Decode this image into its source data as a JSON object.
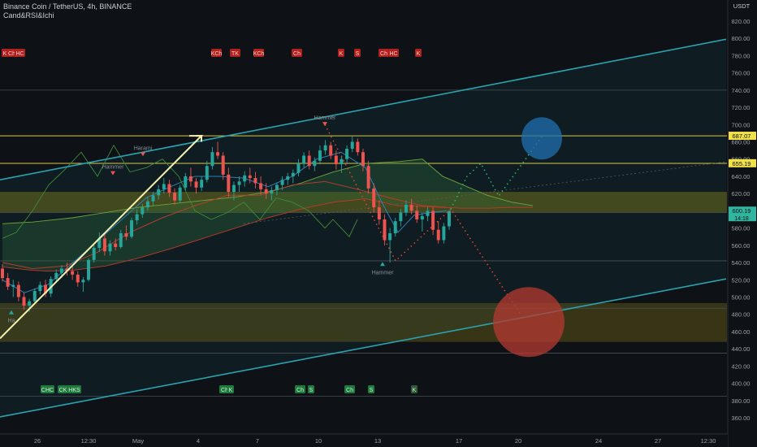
{
  "header": {
    "title": "Binance Coin / TetherUS, 4h, BINANCE",
    "indicator": "Cand&RSI&Ichi",
    "currency": "USDT"
  },
  "chart_data": {
    "type": "candlestick",
    "title": "Binance Coin / TetherUS, 4h, BINANCE",
    "ylim": [
      350,
      835
    ],
    "y_ticks": [
      360,
      380,
      400,
      420,
      440,
      460,
      480,
      500,
      520,
      540,
      560,
      580,
      600,
      620,
      640,
      660,
      680,
      700,
      720,
      740,
      760,
      780,
      800,
      820
    ],
    "x_ticks": [
      "26",
      "12:30",
      "May",
      "4",
      "7",
      "10",
      "13",
      "17",
      "20",
      "24",
      "27",
      "12:30"
    ],
    "price_labels": [
      {
        "value": 687.07,
        "label": "687.07",
        "color": "#f0e14a"
      },
      {
        "value": 655.19,
        "label": "655.19",
        "color": "#f0e14a"
      },
      {
        "value": 600.19,
        "label": "600.19",
        "color": "#2fb5a0"
      }
    ],
    "countdown": "14:18",
    "candles": [
      [
        533,
        538,
        518,
        522
      ],
      [
        522,
        528,
        508,
        512
      ],
      [
        512,
        520,
        500,
        514
      ],
      [
        514,
        518,
        495,
        500
      ],
      [
        500,
        505,
        485,
        490
      ],
      [
        490,
        498,
        483,
        495
      ],
      [
        495,
        510,
        492,
        507
      ],
      [
        507,
        518,
        503,
        514
      ],
      [
        514,
        520,
        500,
        504
      ],
      [
        504,
        524,
        500,
        521
      ],
      [
        521,
        532,
        517,
        528
      ],
      [
        528,
        537,
        522,
        533
      ],
      [
        533,
        540,
        525,
        530
      ],
      [
        530,
        536,
        520,
        526
      ],
      [
        526,
        530,
        512,
        517
      ],
      [
        517,
        523,
        506,
        520
      ],
      [
        520,
        545,
        518,
        543
      ],
      [
        543,
        560,
        540,
        557
      ],
      [
        557,
        575,
        552,
        568
      ],
      [
        568,
        573,
        548,
        553
      ],
      [
        553,
        566,
        548,
        562
      ],
      [
        562,
        568,
        554,
        558
      ],
      [
        558,
        578,
        556,
        574
      ],
      [
        574,
        583,
        566,
        570
      ],
      [
        570,
        592,
        568,
        589
      ],
      [
        589,
        602,
        584,
        596
      ],
      [
        596,
        608,
        592,
        604
      ],
      [
        604,
        616,
        600,
        611
      ],
      [
        611,
        622,
        606,
        618
      ],
      [
        618,
        630,
        613,
        625
      ],
      [
        625,
        638,
        620,
        631
      ],
      [
        631,
        636,
        616,
        621
      ],
      [
        621,
        626,
        607,
        612
      ],
      [
        612,
        630,
        609,
        627
      ],
      [
        627,
        644,
        624,
        640
      ],
      [
        640,
        650,
        628,
        634
      ],
      [
        634,
        638,
        620,
        627
      ],
      [
        627,
        640,
        623,
        636
      ],
      [
        636,
        658,
        633,
        652
      ],
      [
        652,
        674,
        648,
        668
      ],
      [
        668,
        680,
        660,
        664
      ],
      [
        664,
        668,
        636,
        642
      ],
      [
        642,
        650,
        616,
        622
      ],
      [
        622,
        634,
        612,
        630
      ],
      [
        630,
        640,
        622,
        634
      ],
      [
        634,
        646,
        628,
        641
      ],
      [
        641,
        650,
        632,
        638
      ],
      [
        638,
        645,
        626,
        632
      ],
      [
        632,
        640,
        618,
        625
      ],
      [
        625,
        632,
        614,
        620
      ],
      [
        620,
        628,
        612,
        624
      ],
      [
        624,
        633,
        618,
        630
      ],
      [
        630,
        640,
        624,
        636
      ],
      [
        636,
        644,
        630,
        640
      ],
      [
        640,
        648,
        632,
        644
      ],
      [
        644,
        660,
        640,
        655
      ],
      [
        655,
        668,
        650,
        664
      ],
      [
        664,
        670,
        648,
        652
      ],
      [
        652,
        662,
        646,
        658
      ],
      [
        658,
        676,
        654,
        670
      ],
      [
        670,
        682,
        665,
        676
      ],
      [
        676,
        680,
        660,
        664
      ],
      [
        664,
        670,
        648,
        654
      ],
      [
        654,
        664,
        644,
        660
      ],
      [
        660,
        676,
        656,
        672
      ],
      [
        672,
        686,
        668,
        680
      ],
      [
        680,
        684,
        664,
        668
      ],
      [
        668,
        672,
        646,
        652
      ],
      [
        652,
        658,
        620,
        626
      ],
      [
        626,
        632,
        598,
        604
      ],
      [
        604,
        612,
        584,
        590
      ],
      [
        590,
        596,
        560,
        566
      ],
      [
        566,
        580,
        540,
        574
      ],
      [
        574,
        592,
        570,
        588
      ],
      [
        588,
        602,
        582,
        598
      ],
      [
        598,
        612,
        594,
        607
      ],
      [
        607,
        614,
        596,
        600
      ],
      [
        600,
        606,
        586,
        590
      ],
      [
        590,
        598,
        576,
        594
      ],
      [
        594,
        604,
        588,
        600
      ],
      [
        600,
        604,
        572,
        578
      ],
      [
        578,
        588,
        562,
        566
      ],
      [
        566,
        586,
        562,
        582
      ],
      [
        582,
        598,
        578,
        600
      ]
    ],
    "cloud_upper": [
      [
        3,
        585
      ],
      [
        20,
        586
      ],
      [
        40,
        587
      ],
      [
        60,
        589
      ],
      [
        90,
        592
      ],
      [
        130,
        598
      ],
      [
        170,
        604
      ],
      [
        210,
        608
      ],
      [
        250,
        612
      ],
      [
        290,
        616
      ],
      [
        330,
        622
      ],
      [
        370,
        632
      ],
      [
        410,
        645
      ],
      [
        450,
        655
      ],
      [
        490,
        657
      ],
      [
        520,
        660
      ],
      [
        545,
        640
      ],
      [
        570,
        630
      ],
      [
        600,
        618
      ],
      [
        630,
        610
      ],
      [
        656,
        606
      ]
    ],
    "cloud_lower": [
      [
        3,
        535
      ],
      [
        20,
        533
      ],
      [
        40,
        531
      ],
      [
        60,
        530
      ],
      [
        90,
        531
      ],
      [
        130,
        536
      ],
      [
        170,
        545
      ],
      [
        210,
        556
      ],
      [
        250,
        568
      ],
      [
        290,
        580
      ],
      [
        330,
        592
      ],
      [
        370,
        602
      ],
      [
        410,
        610
      ],
      [
        450,
        614
      ],
      [
        490,
        606
      ],
      [
        520,
        605
      ],
      [
        545,
        604
      ],
      [
        570,
        603
      ],
      [
        600,
        603
      ],
      [
        630,
        604
      ],
      [
        656,
        604
      ]
    ],
    "base_line": [
      [
        3,
        540
      ],
      [
        40,
        533
      ],
      [
        80,
        536
      ],
      [
        120,
        552
      ],
      [
        160,
        575
      ],
      [
        200,
        592
      ],
      [
        240,
        606
      ],
      [
        280,
        618
      ],
      [
        320,
        618
      ],
      [
        360,
        630
      ],
      [
        400,
        634
      ],
      [
        440,
        625
      ],
      [
        480,
        615
      ],
      [
        520,
        606
      ],
      [
        550,
        604
      ]
    ],
    "conversion_line": [
      [
        3,
        520
      ],
      [
        30,
        505
      ],
      [
        60,
        515
      ],
      [
        90,
        540
      ],
      [
        120,
        565
      ],
      [
        150,
        590
      ],
      [
        180,
        615
      ],
      [
        210,
        628
      ],
      [
        240,
        640
      ],
      [
        270,
        640
      ],
      [
        300,
        638
      ],
      [
        330,
        628
      ],
      [
        360,
        640
      ],
      [
        390,
        660
      ],
      [
        420,
        668
      ],
      [
        450,
        650
      ],
      [
        470,
        610
      ],
      [
        490,
        575
      ],
      [
        510,
        595
      ],
      [
        530,
        598
      ],
      [
        550,
        600
      ]
    ],
    "lagging_span": [
      [
        3,
        568
      ],
      [
        20,
        575
      ],
      [
        40,
        600
      ],
      [
        60,
        630
      ],
      [
        80,
        648
      ],
      [
        100,
        668
      ],
      [
        120,
        640
      ],
      [
        140,
        676
      ],
      [
        160,
        645
      ],
      [
        180,
        650
      ],
      [
        200,
        660
      ],
      [
        220,
        640
      ],
      [
        240,
        600
      ],
      [
        260,
        590
      ],
      [
        280,
        598
      ],
      [
        300,
        610
      ],
      [
        320,
        590
      ],
      [
        340,
        615
      ],
      [
        360,
        610
      ],
      [
        380,
        600
      ],
      [
        400,
        580
      ],
      [
        410,
        590
      ],
      [
        420,
        580
      ],
      [
        430,
        570
      ],
      [
        440,
        590
      ]
    ],
    "channel_upper": [
      [
        0,
        636
      ],
      [
        894,
        799
      ]
    ],
    "channel_lower": [
      [
        0,
        361
      ],
      [
        894,
        521
      ]
    ],
    "horizontal_levels": [
      740,
      687,
      655,
      598,
      542,
      487,
      435,
      385
    ],
    "zones": [
      [
        598,
        622
      ],
      [
        448,
        493
      ]
    ],
    "patterns_top": [
      {
        "x": 3,
        "label": "K"
      },
      {
        "x": 9,
        "label": "Ch"
      },
      {
        "x": 19,
        "label": "HC"
      },
      {
        "x": 261,
        "label": "KCh"
      },
      {
        "x": 284,
        "label": "TK"
      },
      {
        "x": 313,
        "label": "KCh"
      },
      {
        "x": 360,
        "label": "Ch"
      },
      {
        "x": 417,
        "label": "K"
      },
      {
        "x": 437,
        "label": "S"
      },
      {
        "x": 467,
        "label": "Ch"
      },
      {
        "x": 479,
        "label": "HC"
      },
      {
        "x": 512,
        "label": "K"
      }
    ],
    "patterns_bottom": [
      {
        "x": 51,
        "label": "CHC"
      },
      {
        "x": 72,
        "label": "CK"
      },
      {
        "x": 84,
        "label": "HKS"
      },
      {
        "x": 271,
        "label": "Ch"
      },
      {
        "x": 281,
        "label": "K"
      },
      {
        "x": 364,
        "label": "Ch"
      },
      {
        "x": 380,
        "label": "S"
      },
      {
        "x": 425,
        "label": "Ch"
      },
      {
        "x": 454,
        "label": "S"
      },
      {
        "x": 507,
        "label": "K"
      }
    ],
    "hammer_labels": [
      {
        "x": 139,
        "price": 646,
        "label": "Hammer",
        "dir": "down"
      },
      {
        "x": 176,
        "price": 668,
        "label": "Harami",
        "dir": "down"
      },
      {
        "x": 400,
        "price": 703,
        "label": "Hammer",
        "dir": "down"
      },
      {
        "x": 471,
        "price": 536,
        "label": "Hammer",
        "dir": "up"
      },
      {
        "x": 14,
        "price": 480,
        "label": "Ha",
        "dir": "up"
      }
    ]
  }
}
